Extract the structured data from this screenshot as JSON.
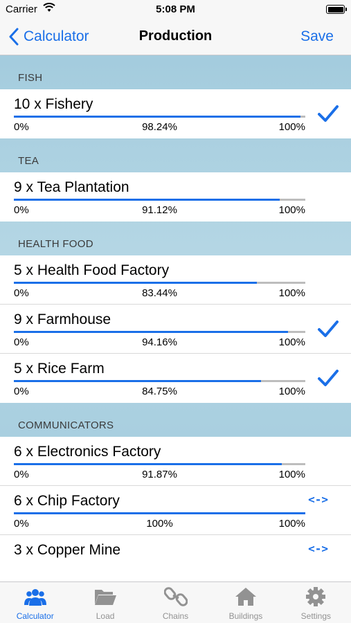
{
  "status_bar": {
    "carrier": "Carrier",
    "time": "5:08 PM"
  },
  "nav": {
    "back_label": "Calculator",
    "title": "Production",
    "save_label": "Save"
  },
  "sections": [
    {
      "header": "FISH",
      "rows": [
        {
          "title": "10 x Fishery",
          "min": "0%",
          "value": "98.24%",
          "max": "100%",
          "progress": 0.9824,
          "accessory": "checkmark"
        }
      ]
    },
    {
      "header": "TEA",
      "rows": [
        {
          "title": "9 x Tea Plantation",
          "min": "0%",
          "value": "91.12%",
          "max": "100%",
          "progress": 0.9112,
          "accessory": "none"
        }
      ]
    },
    {
      "header": "HEALTH FOOD",
      "rows": [
        {
          "title": "5 x Health Food Factory",
          "min": "0%",
          "value": "83.44%",
          "max": "100%",
          "progress": 0.8344,
          "accessory": "none"
        },
        {
          "title": "9 x Farmhouse",
          "min": "0%",
          "value": "94.16%",
          "max": "100%",
          "progress": 0.9416,
          "accessory": "checkmark"
        },
        {
          "title": "5 x Rice Farm",
          "min": "0%",
          "value": "84.75%",
          "max": "100%",
          "progress": 0.8475,
          "accessory": "checkmark"
        }
      ]
    },
    {
      "header": "COMMUNICATORS",
      "rows": [
        {
          "title": "6 x Electronics Factory",
          "min": "0%",
          "value": "91.87%",
          "max": "100%",
          "progress": 0.9187,
          "accessory": "none"
        },
        {
          "title": "6 x Chip Factory",
          "min": "0%",
          "value": "100%",
          "max": "100%",
          "progress": 1.0,
          "accessory": "swap",
          "swap_label": "<->"
        },
        {
          "title": "3 x Copper Mine",
          "accessory": "swap",
          "swap_label": "<->"
        }
      ]
    }
  ],
  "tabs": [
    {
      "label": "Calculator",
      "icon": "users-icon",
      "active": true
    },
    {
      "label": "Load",
      "icon": "folder-icon",
      "active": false
    },
    {
      "label": "Chains",
      "icon": "chain-icon",
      "active": false
    },
    {
      "label": "Buildings",
      "icon": "home-icon",
      "active": false
    },
    {
      "label": "Settings",
      "icon": "gear-icon",
      "active": false
    }
  ],
  "colors": {
    "accent": "#1a6fe8",
    "track": "#bdbdbd",
    "inactive_tab": "#929292"
  }
}
